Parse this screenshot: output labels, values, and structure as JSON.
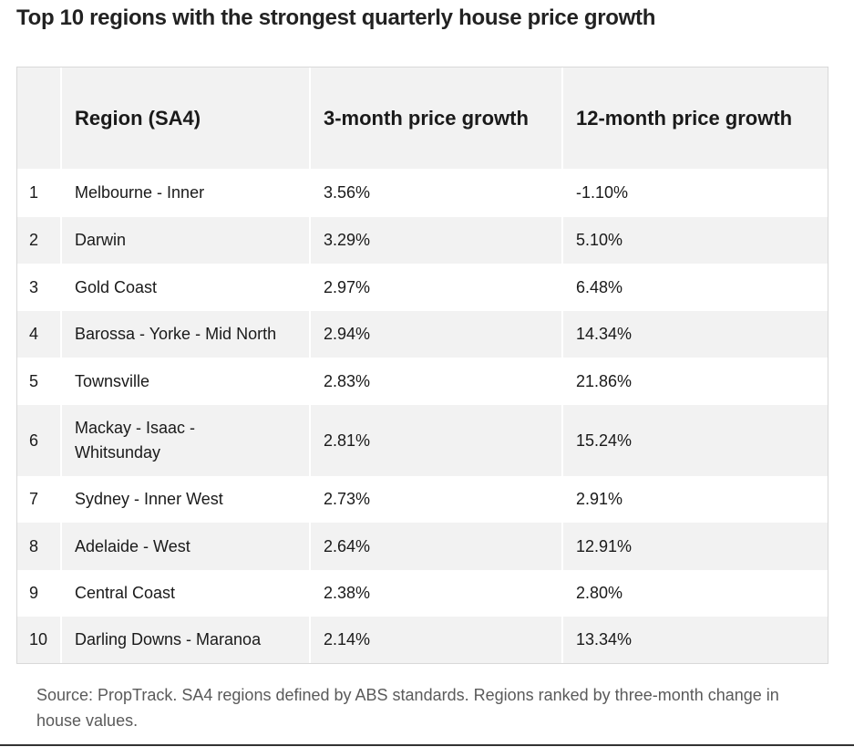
{
  "title": "Top 10 regions with the strongest quarterly house price growth",
  "table": {
    "headers": {
      "rank": "",
      "region": "Region (SA4)",
      "three_month": "3-month price growth",
      "twelve_month": "12-month price growth"
    },
    "rows": [
      {
        "rank": "1",
        "region": "Melbourne - Inner",
        "three_month": "3.56%",
        "twelve_month": "-1.10%"
      },
      {
        "rank": "2",
        "region": "Darwin",
        "three_month": "3.29%",
        "twelve_month": "5.10%"
      },
      {
        "rank": "3",
        "region": "Gold Coast",
        "three_month": "2.97%",
        "twelve_month": "6.48%"
      },
      {
        "rank": "4",
        "region": "Barossa - Yorke - Mid North",
        "three_month": "2.94%",
        "twelve_month": "14.34%"
      },
      {
        "rank": "5",
        "region": "Townsville",
        "three_month": "2.83%",
        "twelve_month": "21.86%"
      },
      {
        "rank": "6",
        "region": "Mackay - Isaac - Whitsunday",
        "three_month": "2.81%",
        "twelve_month": "15.24%"
      },
      {
        "rank": "7",
        "region": "Sydney - Inner West",
        "three_month": "2.73%",
        "twelve_month": "2.91%"
      },
      {
        "rank": "8",
        "region": "Adelaide - West",
        "three_month": "2.64%",
        "twelve_month": "12.91%"
      },
      {
        "rank": "9",
        "region": "Central Coast",
        "three_month": "2.38%",
        "twelve_month": "2.80%"
      },
      {
        "rank": "10",
        "region": "Darling Downs - Maranoa",
        "three_month": "2.14%",
        "twelve_month": "13.34%"
      }
    ]
  },
  "source": "Source: PropTrack. SA4 regions defined by ABS standards. Regions ranked by three-month change in house values.",
  "colors": {
    "header_bg": "#f2f2f2",
    "stripe_bg": "#f2f2f2",
    "border": "#d8d8d8",
    "note_text": "#5a5a5a"
  }
}
